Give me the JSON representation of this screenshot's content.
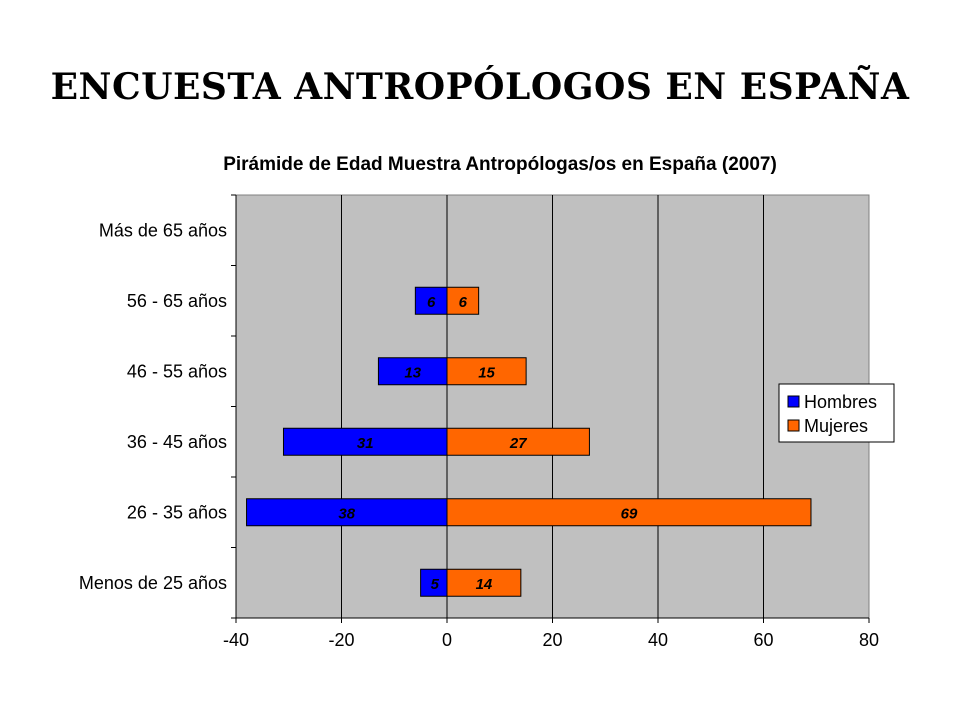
{
  "slide": {
    "title": "ENCUESTA ANTROPÓLOGOS EN ESPAÑA"
  },
  "chart_data": {
    "type": "bar",
    "orientation": "horizontal",
    "title": "Pirámide de Edad Muestra Antropólogas/os en España (2007)",
    "categories": [
      "Más de 65 años",
      "56 - 65 años",
      "46 - 55 años",
      "36 - 45 años",
      "26 - 35 años",
      "Menos de 25 años"
    ],
    "series": [
      {
        "name": "Hombres",
        "color": "#0000ff",
        "values": [
          0,
          -6,
          -13,
          -31,
          -38,
          -5
        ],
        "labels": [
          "",
          "6",
          "13",
          "31",
          "38",
          "5"
        ]
      },
      {
        "name": "Mujeres",
        "color": "#ff6600",
        "values": [
          0,
          6,
          15,
          27,
          69,
          14
        ],
        "labels": [
          "",
          "6",
          "15",
          "27",
          "69",
          "14"
        ]
      }
    ],
    "xlim": [
      -40,
      80
    ],
    "xticks": [
      -40,
      -20,
      0,
      20,
      40,
      60,
      80
    ],
    "xtick_labels": [
      "-40",
      "-20",
      "0",
      "20",
      "40",
      "60",
      "80"
    ],
    "grid": true,
    "plot_background": "#c0c0c0",
    "legend_position": "right"
  }
}
